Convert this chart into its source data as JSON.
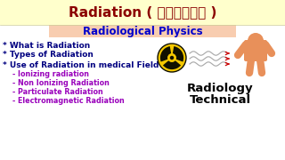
{
  "title": "Radiation ( विकिरण )",
  "subtitle": "Radiological Physics",
  "bg_top": "#ffffcc",
  "bg_main": "#ffffff",
  "subtitle_bg": "#f8cdb0",
  "title_color": "#8b0000",
  "subtitle_color": "#0000cc",
  "bullet_color": "#000080",
  "sub_bullet_color": "#9900bb",
  "radiology_color": "#000000",
  "bullets": [
    "* What is Radiation",
    "* Types of Radiation",
    "* Use of Radiation in medical Field"
  ],
  "sub_bullets": [
    "    - Ionizing radiation",
    "    - Non Ionizing Radiation",
    "    - Particulate Radiation",
    "    - Electromagnetic Radiation"
  ],
  "radiology_text": [
    "Radiology",
    "Technical"
  ],
  "radiation_symbol_yellow": "#f5c800",
  "radiation_symbol_black": "#111100",
  "human_color": "#e8905a",
  "wave_color": "#aaaaaa",
  "arrow_color": "#cc0000"
}
